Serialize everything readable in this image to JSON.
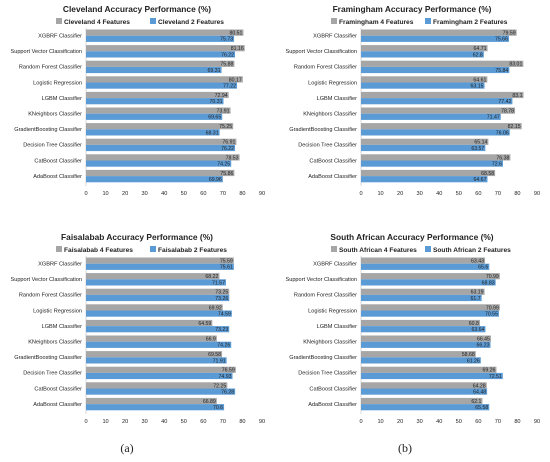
{
  "colors": {
    "series4": "#a6a6a6",
    "series2": "#5b9bd5",
    "axis": "#bfbfbf",
    "text": "#222222"
  },
  "captions": {
    "a": "(a)",
    "b": "(b)"
  },
  "chart_data": [
    {
      "type": "bar",
      "orientation": "horizontal",
      "title": "Cleveland Accuracy Performance (%)",
      "legend_position": "top",
      "categories": [
        "XGBRF Classifier",
        "Support Vector Classification",
        "Random Forest Classifier",
        "Logistic Regression",
        "LGBM Classifier",
        "KNeighbors Classifier",
        "GradientBoosting Classifier",
        "Decision Tree Classifier",
        "CatBoost Classifier",
        "AdaBoost Classifier"
      ],
      "series": [
        {
          "name": "Cleveland 4 Features",
          "values": [
            80.51,
            81.16,
            75.88,
            80.17,
            72.94,
            73.91,
            75.25,
            76.91,
            78.53,
            75.86
          ]
        },
        {
          "name": "Cleveland 2 Features",
          "values": [
            75.73,
            76.22,
            69.31,
            77.22,
            70.31,
            69.65,
            68.31,
            76.22,
            74.25,
            69.96
          ]
        }
      ],
      "xticks": [
        0,
        10,
        20,
        30,
        40,
        50,
        60,
        70,
        80,
        90
      ],
      "xlim": [
        0,
        90
      ],
      "grid": false
    },
    {
      "type": "bar",
      "orientation": "horizontal",
      "title": "Framingham Accuracy Performance (%)",
      "legend_position": "top",
      "categories": [
        "XGBRF Classifier",
        "Support Vector Classification",
        "Random Forest Classifier",
        "Logistic Regression",
        "LGBM Classifier",
        "KNeighbors Classifier",
        "GradientBoosting Classifier",
        "Decision Tree Classifier",
        "CatBoost Classifier",
        "AdaBoost Classifier"
      ],
      "series": [
        {
          "name": "Framingham 4 Features",
          "values": [
            79.59,
            64.71,
            83.01,
            64.61,
            83.1,
            78.78,
            82.15,
            65.14,
            76.38,
            68.58
          ]
        },
        {
          "name": "Framingham 2 Features",
          "values": [
            75.66,
            62.8,
            75.84,
            63.15,
            77.42,
            71.47,
            76.06,
            63.57,
            72.6,
            64.67
          ]
        }
      ],
      "xticks": [
        0,
        10,
        20,
        30,
        40,
        50,
        60,
        70,
        80,
        90
      ],
      "xlim": [
        0,
        90
      ],
      "grid": false
    },
    {
      "type": "bar",
      "orientation": "horizontal",
      "title": "Faisalabab Accuracy Performance (%)",
      "legend_position": "top",
      "categories": [
        "XGBRF Classifier",
        "Support Vector Classification",
        "Random Forest Classifier",
        "Logistic Regression",
        "LGBM Classifier",
        "KNeighbors Classifier",
        "GradientBoosting Classifier",
        "Decision Tree Classifier",
        "CatBoost Classifier",
        "AdaBoost Classifier"
      ],
      "series": [
        {
          "name": "Faisalabab 4 Features",
          "values": [
            75.59,
            68.22,
            73.25,
            69.92,
            64.59,
            66.9,
            69.58,
            76.59,
            72.25,
            66.89
          ]
        },
        {
          "name": "Faisalabab 2 Features",
          "values": [
            75.61,
            71.57,
            73.26,
            74.59,
            73.23,
            74.26,
            71.91,
            74.93,
            76.28,
            70.6
          ]
        }
      ],
      "xticks": [
        0,
        10,
        20,
        30,
        40,
        50,
        60,
        70,
        80,
        90
      ],
      "xlim": [
        0,
        90
      ],
      "grid": false
    },
    {
      "type": "bar",
      "orientation": "horizontal",
      "title": "South African Accuracy Performance (%)",
      "legend_position": "top",
      "categories": [
        "XGBRF Classifier",
        "Support Vector Classification",
        "Random Forest Classifier",
        "Logistic Regression",
        "LGBM Classifier",
        "KNeighbors Classifier",
        "GradientBoosting Classifier",
        "Decision Tree Classifier",
        "CatBoost Classifier",
        "AdaBoost Classifier"
      ],
      "series": [
        {
          "name": "South African 4 Features",
          "values": [
            63.43,
            70.99,
            63.19,
            70.99,
            60.8,
            66.45,
            58.68,
            69.26,
            64.28,
            62.1
          ]
        },
        {
          "name": "South African 2 Features",
          "values": [
            65.6,
            68.83,
            61.7,
            70.55,
            63.64,
            66.23,
            61.26,
            72.51,
            64.48,
            65.58
          ]
        }
      ],
      "xticks": [
        0,
        10,
        20,
        30,
        40,
        50,
        60,
        70,
        80,
        90
      ],
      "xlim": [
        0,
        90
      ],
      "grid": false
    }
  ]
}
